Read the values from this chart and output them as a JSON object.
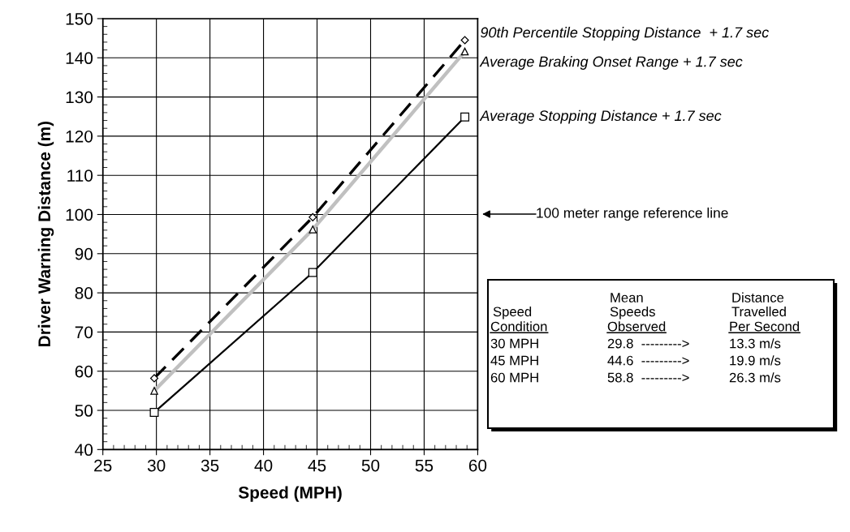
{
  "chart_data": {
    "type": "line",
    "xlabel": "Speed (MPH)",
    "ylabel": "Driver Warning Distance (m)",
    "x": [
      29.8,
      44.6,
      58.8
    ],
    "series": [
      {
        "name": "90th Percentile Stopping Distance  + 1.7 sec",
        "color": "#000000",
        "values": [
          58.2,
          99.3,
          144.5
        ],
        "marker": "diamond",
        "line_style": "dashed"
      },
      {
        "name": "Average Braking Onset Range + 1.7 sec",
        "color": "#c0c0c0",
        "values": [
          55.0,
          96.2,
          141.6
        ],
        "marker": "triangle",
        "line_style": "solid"
      },
      {
        "name": "Average Stopping Distance + 1.7 sec",
        "color": "#000000",
        "values": [
          49.5,
          85.2,
          124.9
        ],
        "marker": "square",
        "line_style": "solid"
      }
    ],
    "xlim": [
      25,
      60
    ],
    "xticks": [
      25,
      30,
      35,
      40,
      45,
      50,
      55,
      60
    ],
    "ylim": [
      40,
      150
    ],
    "yticks": [
      40,
      50,
      60,
      70,
      80,
      90,
      100,
      110,
      120,
      130,
      140,
      150
    ],
    "grid": true,
    "legend": false,
    "annotations": [
      "100 meter range reference line",
      "Speed",
      "Mean\nSpeeds",
      "Distance\nTravelled",
      "Condition",
      "Observed",
      "Per Second",
      "30 MPH",
      "29.8  --------->",
      "13.3 m/s",
      "45 MPH",
      "44.6  --------->",
      "19.9 m/s",
      "60 MPH",
      "58.8  --------->",
      "26.3 m/s"
    ]
  }
}
